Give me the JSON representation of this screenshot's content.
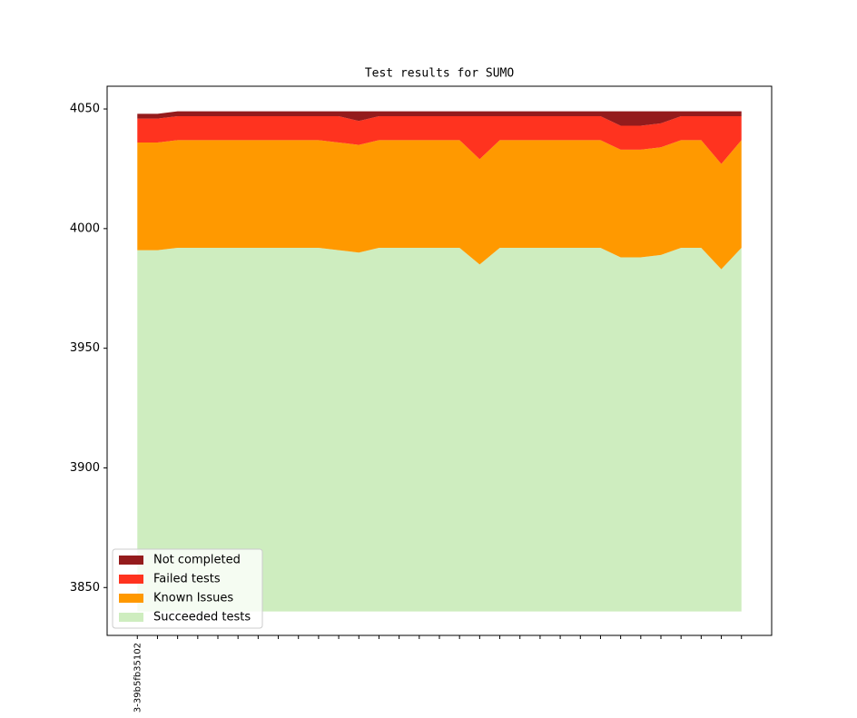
{
  "chart_data": {
    "type": "stacked_area",
    "title": "Test results for SUMO",
    "categories": [
      "3-39b5fb35102",
      null,
      null,
      null,
      null,
      null,
      null,
      null,
      null,
      null,
      null,
      null,
      null,
      null,
      null,
      null,
      null,
      null,
      null,
      null,
      null,
      null,
      null,
      null,
      null,
      null,
      null,
      null,
      null,
      null,
      null
    ],
    "baseline": 3840,
    "series": [
      {
        "name": "Not completed",
        "color": "#941b1c",
        "values": [
          2,
          2,
          2,
          2,
          2,
          2,
          2,
          2,
          2,
          2,
          2,
          4,
          2,
          2,
          2,
          2,
          2,
          2,
          2,
          2,
          2,
          2,
          2,
          2,
          6,
          6,
          5,
          2,
          2,
          2,
          2
        ]
      },
      {
        "name": "Failed tests",
        "color": "#ff331f",
        "values": [
          10,
          10,
          10,
          10,
          10,
          10,
          10,
          10,
          10,
          10,
          11,
          10,
          10,
          10,
          10,
          10,
          10,
          18,
          10,
          10,
          10,
          10,
          10,
          10,
          10,
          10,
          10,
          10,
          10,
          20,
          10
        ]
      },
      {
        "name": "Known Issues",
        "color": "#ff9900",
        "values": [
          45,
          45,
          45,
          45,
          45,
          45,
          45,
          45,
          45,
          45,
          45,
          45,
          45,
          45,
          45,
          45,
          45,
          44,
          45,
          45,
          45,
          45,
          45,
          45,
          45,
          45,
          45,
          45,
          45,
          44,
          45
        ]
      },
      {
        "name": "Succeeded tests",
        "color": "#ceedbf",
        "values": [
          3991,
          3991,
          3992,
          3992,
          3992,
          3992,
          3992,
          3992,
          3992,
          3992,
          3991,
          3990,
          3992,
          3992,
          3992,
          3992,
          3992,
          3985,
          3992,
          3992,
          3992,
          3992,
          3992,
          3992,
          3988,
          3988,
          3989,
          3992,
          3992,
          3983,
          3992
        ]
      }
    ],
    "ylim": [
      3830,
      4059.5
    ],
    "yticks": [
      3850,
      3900,
      3950,
      4000,
      4050
    ],
    "legend": "lower left"
  }
}
